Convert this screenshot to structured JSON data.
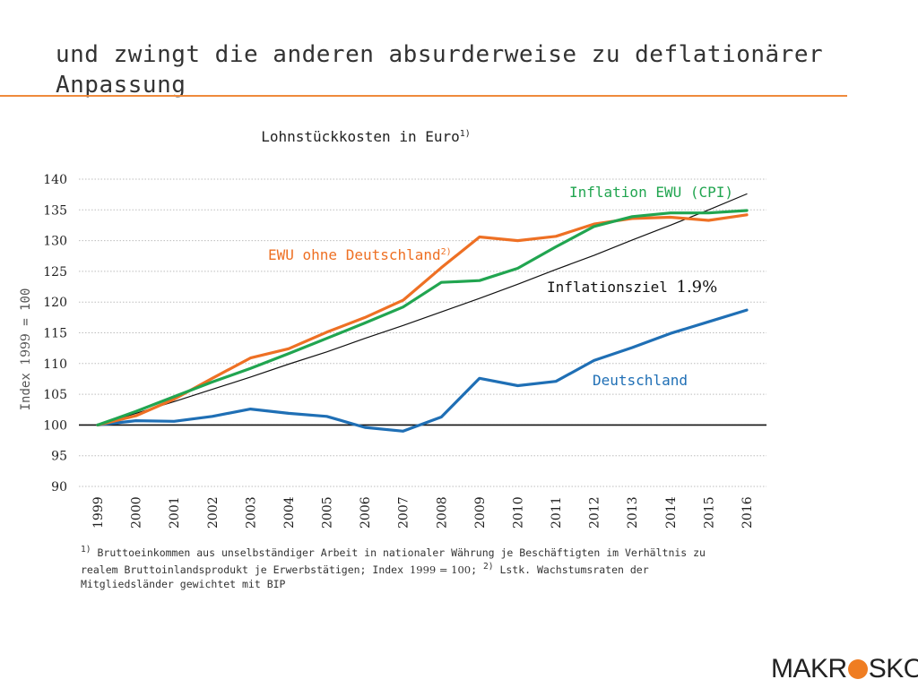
{
  "headline": "und zwingt die anderen absurderweise zu deflationärer Anpassung",
  "chart_data": {
    "type": "line",
    "title": "Lohnstückkosten in Euro",
    "title_sup": "1)",
    "ylabel_prefix": "Index ",
    "ylabel_year": "1999",
    "ylabel_suffix": " = 100",
    "ylim": [
      90,
      140
    ],
    "yticks": [
      90,
      95,
      100,
      105,
      110,
      115,
      120,
      125,
      130,
      135,
      140
    ],
    "grid": true,
    "categories": [
      "1999",
      "2000",
      "2001",
      "2002",
      "2003",
      "2004",
      "2005",
      "2006",
      "2007",
      "2008",
      "2009",
      "2010",
      "2011",
      "2012",
      "2013",
      "2014",
      "2015",
      "2016"
    ],
    "baseline": 100,
    "series": [
      {
        "name": "Deutschland",
        "color": "#1f6fb5",
        "values": [
          100,
          100.7,
          100.6,
          101.4,
          102.6,
          101.9,
          101.4,
          99.6,
          99.0,
          101.3,
          107.6,
          106.4,
          107.1,
          110.5,
          112.6,
          114.9,
          116.8,
          118.7
        ]
      },
      {
        "name": "EWU ohne Deutschland",
        "name_sup": "2)",
        "color": "#ee7024",
        "values": [
          100,
          101.5,
          104.2,
          107.6,
          110.9,
          112.4,
          115.1,
          117.5,
          120.3,
          125.6,
          130.6,
          130.0,
          130.7,
          132.7,
          133.6,
          133.8,
          133.3,
          134.2
        ]
      },
      {
        "name": "Inflation EWU (CPI)",
        "color": "#21a550",
        "values": [
          100,
          102.2,
          104.6,
          107.0,
          109.2,
          111.6,
          114.1,
          116.6,
          119.2,
          123.2,
          123.5,
          125.5,
          129.0,
          132.3,
          133.9,
          134.5,
          134.5,
          134.9
        ]
      },
      {
        "name": "Inflationsziel",
        "name_value": "1.9%",
        "color": "#111111",
        "values": [
          100,
          101.9,
          103.8,
          105.8,
          107.8,
          109.9,
          111.9,
          114.1,
          116.2,
          118.4,
          120.6,
          122.9,
          125.3,
          127.6,
          130.1,
          132.5,
          135.0,
          137.6
        ]
      }
    ]
  },
  "footnote": {
    "l1_sup1": "1)",
    "l1_text": " Bruttoeinkommen aus unselbständiger Arbeit in nationaler Währung je Beschäftigten im Verhältnis zu",
    "l2_text": "realem Bruttoinlandsprodukt je Erwerbstätigen; Index ",
    "l2_year": "1999 = 100",
    "l2_sep": "; ",
    "l2_sup2": "2)",
    "l2_rest": " Lstk. Wachstumsraten der",
    "l3_text": "Mitgliedsländer gewichtet mit BIP"
  },
  "logo": {
    "left": "MAKR",
    "right": "SKOP",
    "dot_color": "#ef7d22"
  }
}
